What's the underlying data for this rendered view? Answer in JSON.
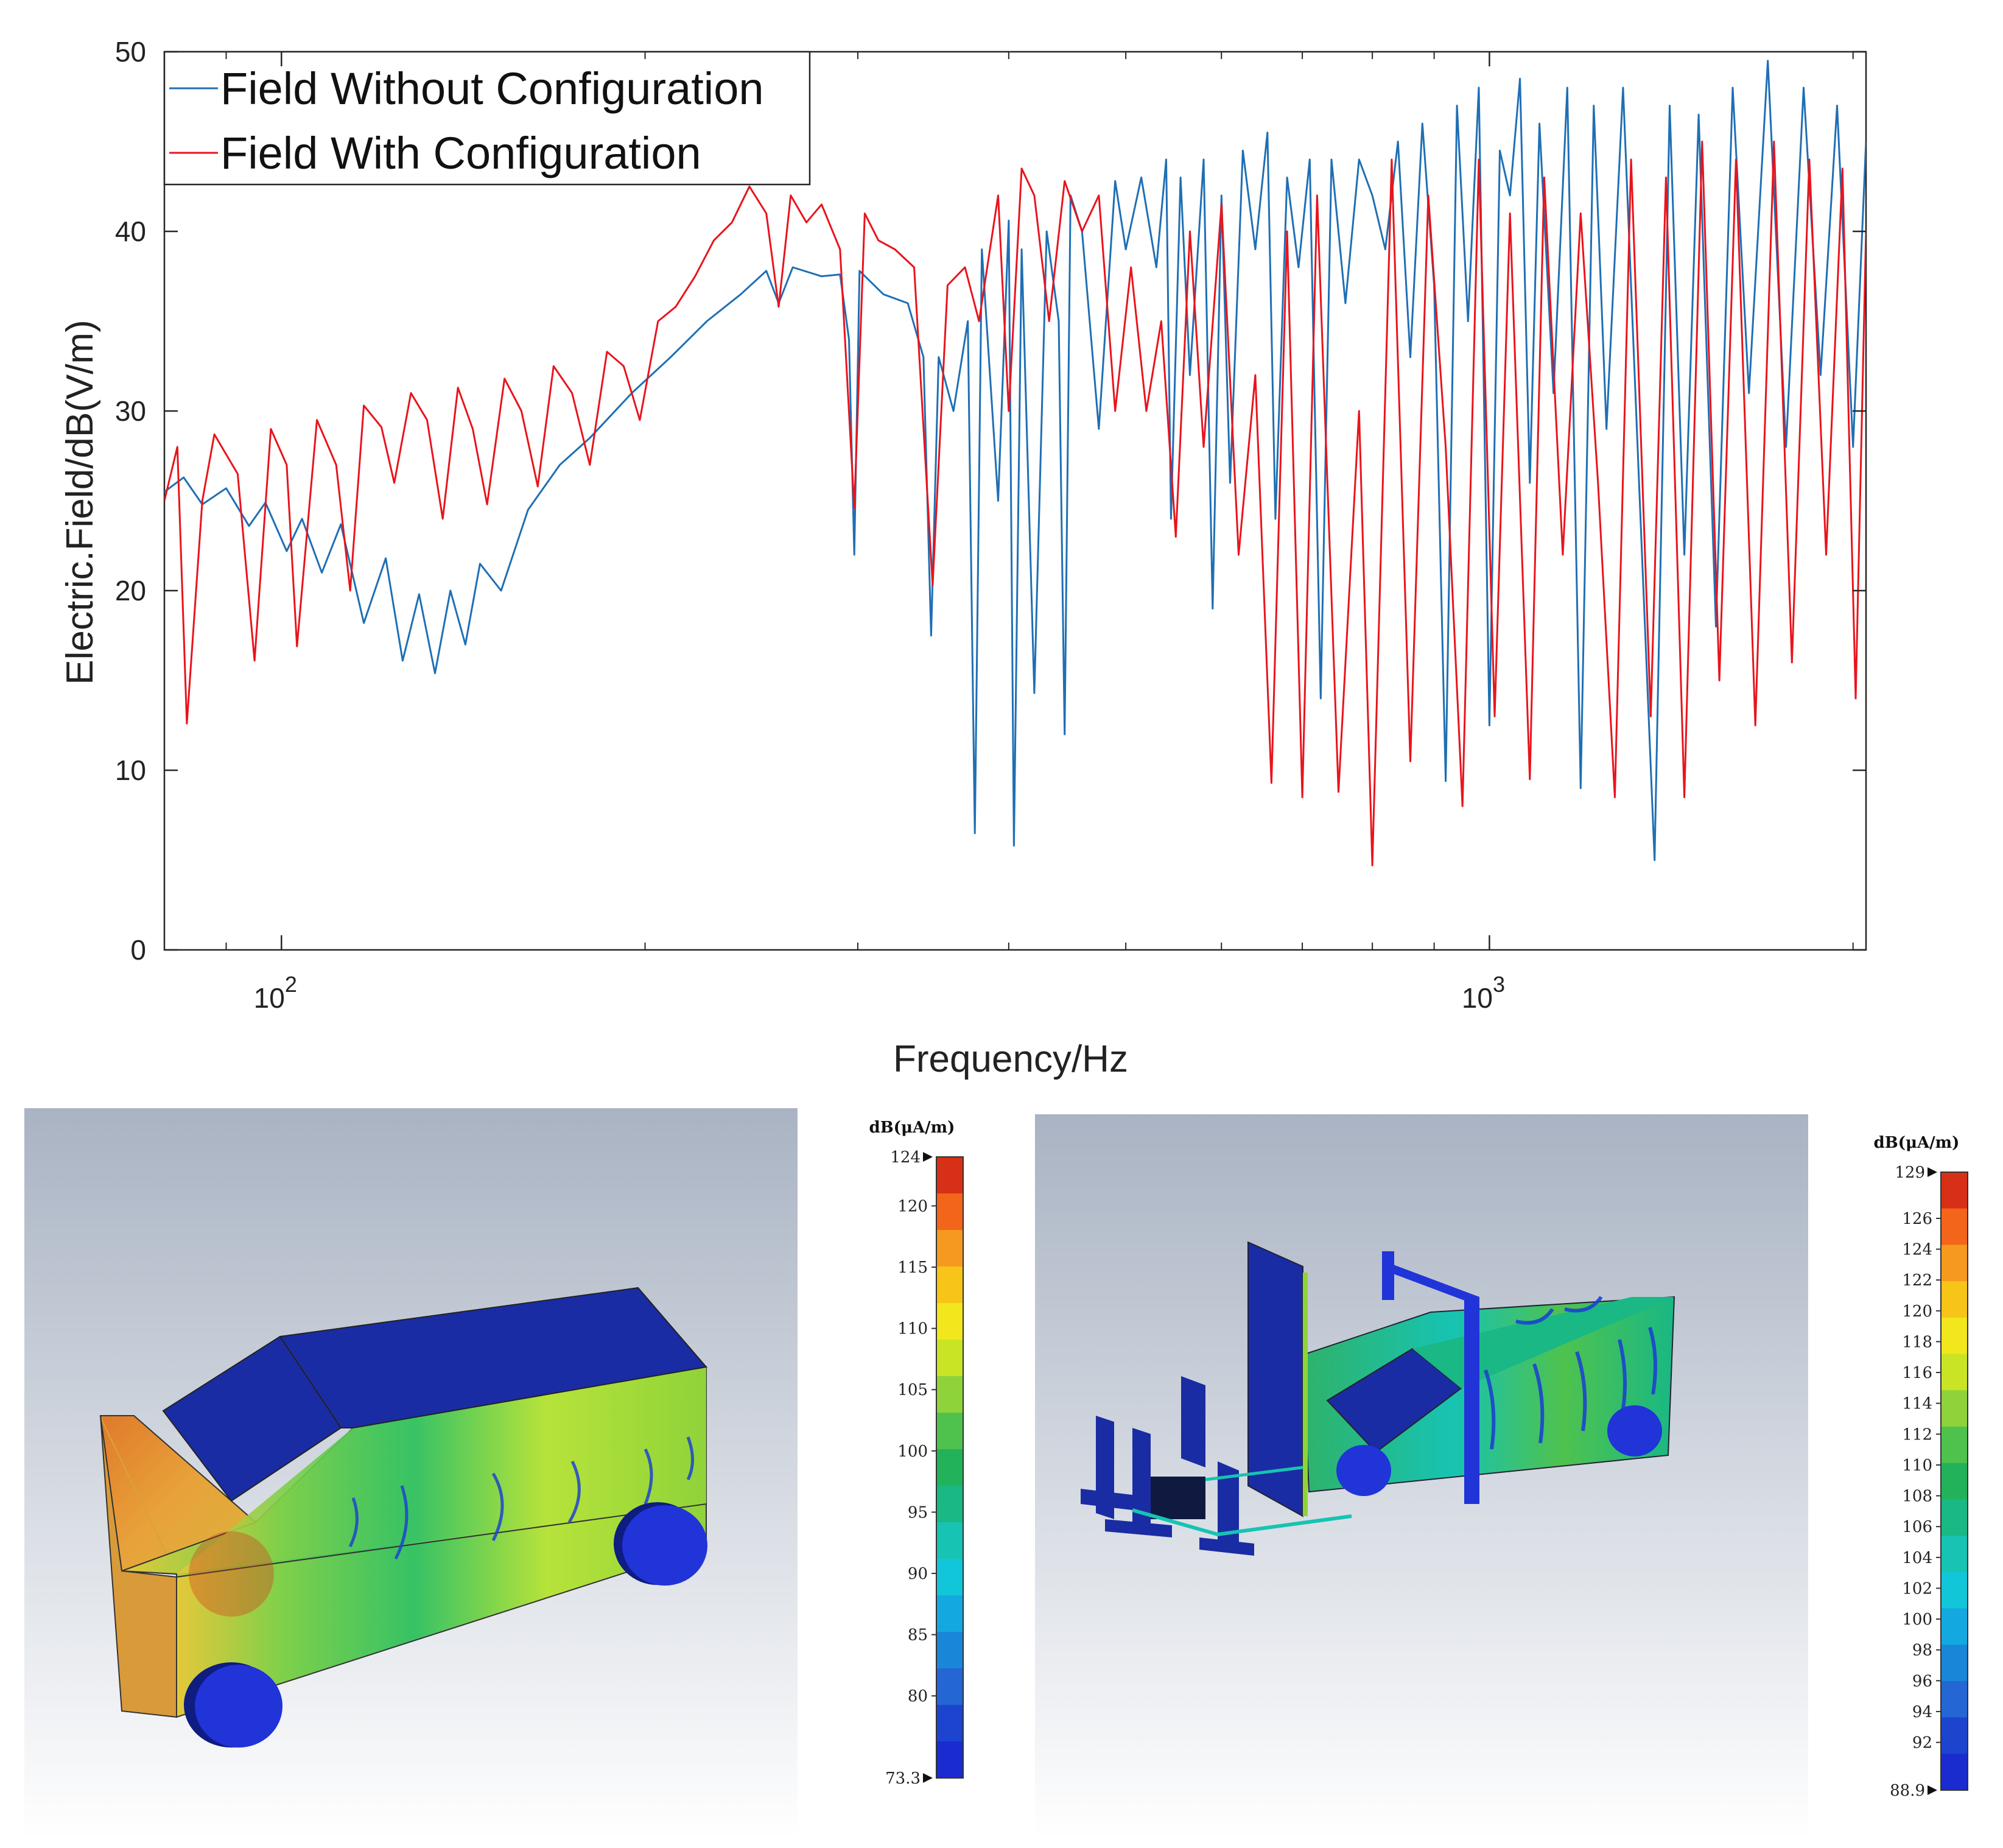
{
  "chart_data": [
    {
      "type": "line",
      "xscale": "log",
      "xlabel": "Frequency/Hz",
      "ylabel": "Electric.Field/dB(V/m)",
      "xlim": [
        80,
        2050
      ],
      "ylim": [
        0,
        50
      ],
      "yticks": [
        0,
        10,
        20,
        30,
        40,
        50
      ],
      "xticks": [
        {
          "value": 100,
          "base": "10",
          "exp": "2"
        },
        {
          "value": 1000,
          "base": "10",
          "exp": "3"
        }
      ],
      "legend": {
        "position": "top-left"
      },
      "series": [
        {
          "name": "Field Without Configuration",
          "color": "#1f6fb4",
          "points": [
            [
              80,
              25.5
            ],
            [
              83,
              26.3
            ],
            [
              86,
              24.8
            ],
            [
              90,
              25.7
            ],
            [
              94,
              23.6
            ],
            [
              97,
              24.9
            ],
            [
              101,
              22.2
            ],
            [
              104,
              24
            ],
            [
              108,
              21
            ],
            [
              112,
              23.7
            ],
            [
              117,
              18.2
            ],
            [
              122,
              21.8
            ],
            [
              126,
              16.1
            ],
            [
              130,
              19.8
            ],
            [
              134,
              15.4
            ],
            [
              138,
              20
            ],
            [
              142,
              17
            ],
            [
              146,
              21.5
            ],
            [
              152,
              20
            ],
            [
              160,
              24.5
            ],
            [
              170,
              27
            ],
            [
              180,
              28.5
            ],
            [
              195,
              31
            ],
            [
              210,
              33
            ],
            [
              225,
              35
            ],
            [
              240,
              36.5
            ],
            [
              252,
              37.8
            ],
            [
              258,
              36
            ],
            [
              265,
              38
            ],
            [
              280,
              37.5
            ],
            [
              290,
              37.6
            ],
            [
              295,
              34
            ],
            [
              298,
              22
            ],
            [
              301,
              37.8
            ],
            [
              315,
              36.5
            ],
            [
              330,
              36
            ],
            [
              340,
              33
            ],
            [
              345,
              17.5
            ],
            [
              350,
              33
            ],
            [
              360,
              30
            ],
            [
              370,
              35
            ],
            [
              375,
              6.5
            ],
            [
              380,
              39
            ],
            [
              392,
              25
            ],
            [
              400,
              40.6
            ],
            [
              404,
              5.8
            ],
            [
              410,
              39
            ],
            [
              420,
              14.3
            ],
            [
              430,
              40
            ],
            [
              440,
              35
            ],
            [
              445,
              12
            ],
            [
              450,
              42
            ],
            [
              460,
              40
            ],
            [
              475,
              29
            ],
            [
              490,
              42.8
            ],
            [
              500,
              39
            ],
            [
              515,
              43
            ],
            [
              530,
              38
            ],
            [
              540,
              44
            ],
            [
              545,
              24
            ],
            [
              555,
              43
            ],
            [
              565,
              32
            ],
            [
              580,
              44
            ],
            [
              590,
              19
            ],
            [
              600,
              42
            ],
            [
              610,
              26
            ],
            [
              625,
              44.5
            ],
            [
              640,
              39
            ],
            [
              655,
              45.5
            ],
            [
              665,
              24
            ],
            [
              680,
              43
            ],
            [
              695,
              38
            ],
            [
              710,
              44
            ],
            [
              725,
              14
            ],
            [
              740,
              44
            ],
            [
              760,
              36
            ],
            [
              780,
              44
            ],
            [
              800,
              42
            ],
            [
              820,
              39
            ],
            [
              840,
              45
            ],
            [
              860,
              33
            ],
            [
              880,
              46
            ],
            [
              900,
              37
            ],
            [
              920,
              9.4
            ],
            [
              940,
              47
            ],
            [
              960,
              35
            ],
            [
              980,
              48
            ],
            [
              1000,
              12.5
            ],
            [
              1020,
              44.5
            ],
            [
              1040,
              42
            ],
            [
              1060,
              48.5
            ],
            [
              1080,
              26
            ],
            [
              1100,
              46
            ],
            [
              1130,
              31
            ],
            [
              1160,
              48
            ],
            [
              1190,
              9
            ],
            [
              1220,
              47
            ],
            [
              1250,
              29
            ],
            [
              1290,
              48
            ],
            [
              1330,
              26
            ],
            [
              1370,
              5
            ],
            [
              1410,
              47
            ],
            [
              1450,
              22
            ],
            [
              1490,
              46.5
            ],
            [
              1540,
              18
            ],
            [
              1590,
              48
            ],
            [
              1640,
              31
            ],
            [
              1700,
              49.5
            ],
            [
              1760,
              28
            ],
            [
              1820,
              48
            ],
            [
              1880,
              32
            ],
            [
              1940,
              47
            ],
            [
              2000,
              28
            ],
            [
              2050,
              45
            ]
          ]
        },
        {
          "name": "Field With Configuration",
          "color": "#e8141c",
          "points": [
            [
              80,
              25
            ],
            [
              82,
              28
            ],
            [
              83.5,
              12.6
            ],
            [
              86,
              25
            ],
            [
              88,
              28.7
            ],
            [
              92,
              26.5
            ],
            [
              95,
              16.1
            ],
            [
              98,
              29
            ],
            [
              101,
              27
            ],
            [
              103,
              16.9
            ],
            [
              107,
              29.5
            ],
            [
              111,
              27
            ],
            [
              114,
              20
            ],
            [
              117,
              30.3
            ],
            [
              121,
              29.1
            ],
            [
              124,
              26
            ],
            [
              128,
              31
            ],
            [
              132,
              29.5
            ],
            [
              136,
              24
            ],
            [
              140,
              31.3
            ],
            [
              144,
              29
            ],
            [
              148,
              24.8
            ],
            [
              153,
              31.8
            ],
            [
              158,
              30
            ],
            [
              163,
              25.8
            ],
            [
              168,
              32.5
            ],
            [
              174,
              31
            ],
            [
              180,
              27
            ],
            [
              186,
              33.3
            ],
            [
              192,
              32.5
            ],
            [
              198,
              29.5
            ],
            [
              205,
              35
            ],
            [
              212,
              35.8
            ],
            [
              220,
              37.5
            ],
            [
              228,
              39.5
            ],
            [
              236,
              40.5
            ],
            [
              244,
              42.5
            ],
            [
              252,
              41
            ],
            [
              258,
              35.8
            ],
            [
              264,
              42
            ],
            [
              272,
              40.5
            ],
            [
              280,
              41.5
            ],
            [
              290,
              39
            ],
            [
              298,
              24.6
            ],
            [
              304,
              41
            ],
            [
              312,
              39.5
            ],
            [
              322,
              39
            ],
            [
              334,
              38
            ],
            [
              346,
              20.3
            ],
            [
              356,
              37
            ],
            [
              368,
              38
            ],
            [
              378,
              35
            ],
            [
              392,
              42
            ],
            [
              400,
              30
            ],
            [
              410,
              43.5
            ],
            [
              420,
              42
            ],
            [
              432,
              35
            ],
            [
              445,
              42.8
            ],
            [
              460,
              40
            ],
            [
              475,
              42
            ],
            [
              490,
              30
            ],
            [
              505,
              38
            ],
            [
              520,
              30
            ],
            [
              535,
              35
            ],
            [
              550,
              23
            ],
            [
              565,
              40
            ],
            [
              580,
              28
            ],
            [
              600,
              41.5
            ],
            [
              620,
              22
            ],
            [
              640,
              32
            ],
            [
              660,
              9.3
            ],
            [
              680,
              40
            ],
            [
              700,
              8.5
            ],
            [
              720,
              42
            ],
            [
              750,
              8.8
            ],
            [
              780,
              30
            ],
            [
              800,
              4.7
            ],
            [
              830,
              44
            ],
            [
              860,
              10.5
            ],
            [
              890,
              42
            ],
            [
              920,
              28
            ],
            [
              950,
              8
            ],
            [
              980,
              44
            ],
            [
              1010,
              13
            ],
            [
              1040,
              41
            ],
            [
              1080,
              9.5
            ],
            [
              1110,
              43
            ],
            [
              1150,
              22
            ],
            [
              1190,
              41
            ],
            [
              1230,
              26
            ],
            [
              1270,
              8.5
            ],
            [
              1310,
              44
            ],
            [
              1360,
              13
            ],
            [
              1400,
              43
            ],
            [
              1450,
              8.5
            ],
            [
              1500,
              45
            ],
            [
              1550,
              15
            ],
            [
              1600,
              44
            ],
            [
              1660,
              12.5
            ],
            [
              1720,
              45
            ],
            [
              1780,
              16
            ],
            [
              1840,
              44
            ],
            [
              1900,
              22
            ],
            [
              1960,
              43.5
            ],
            [
              2010,
              14
            ],
            [
              2050,
              40
            ]
          ]
        }
      ]
    },
    {
      "type": "heatmap",
      "colorbar": {
        "title": "dB(μA/m)",
        "max_label": "124",
        "min_label": "73.3",
        "range": [
          73.3,
          124
        ],
        "ticks": [
          "120",
          "115",
          "110",
          "105",
          "100",
          "95",
          "90",
          "85",
          "80"
        ],
        "tick_values": [
          120,
          115,
          110,
          105,
          100,
          95,
          90,
          85,
          80
        ]
      }
    },
    {
      "type": "heatmap",
      "colorbar": {
        "title": "dB(μA/m)",
        "max_label": "129",
        "min_label": "88.9",
        "range": [
          88.9,
          129
        ],
        "ticks": [
          "126",
          "124",
          "122",
          "120",
          "118",
          "116",
          "114",
          "112",
          "110",
          "108",
          "106",
          "104",
          "102",
          "100",
          "98",
          "96",
          "94",
          "92"
        ],
        "tick_values": [
          126,
          124,
          122,
          120,
          118,
          116,
          114,
          112,
          110,
          108,
          106,
          104,
          102,
          100,
          98,
          96,
          94,
          92
        ]
      }
    }
  ],
  "colors": {
    "cb_steps": [
      "#d73016",
      "#f2651a",
      "#f59a1e",
      "#f7c418",
      "#f2e61c",
      "#c9e424",
      "#8fd33a",
      "#4fc24e",
      "#22b35a",
      "#19b884",
      "#17c3b2",
      "#11c6d8",
      "#14a8e0",
      "#1a86d8",
      "#2366d4",
      "#1c44cf",
      "#1a2bd0"
    ],
    "car_body": "#1a2ca3",
    "scene_top": "#a9b3c3",
    "scene_bottom": "#ffffff"
  }
}
